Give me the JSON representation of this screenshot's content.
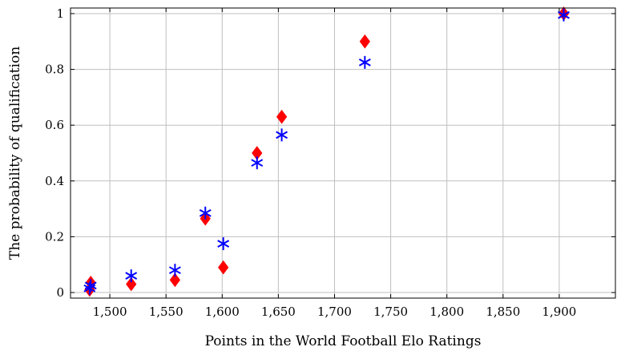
{
  "chart_data": {
    "type": "scatter",
    "title": "",
    "xlabel": "Points in the World Football Elo Ratings",
    "ylabel": "The probability of qualification",
    "xlim": [
      1465,
      1950
    ],
    "ylim": [
      -0.02,
      1.02
    ],
    "x_ticks": [
      1500,
      1550,
      1600,
      1650,
      1700,
      1750,
      1800,
      1850,
      1900
    ],
    "x_tick_labels": [
      "1,500",
      "1,550",
      "1,600",
      "1,650",
      "1,700",
      "1,750",
      "1,800",
      "1,850",
      "1,900"
    ],
    "y_ticks": [
      0,
      0.2,
      0.4,
      0.6,
      0.8,
      1
    ],
    "y_tick_labels": [
      "0",
      "0.2",
      "0.4",
      "0.6",
      "0.8",
      "1"
    ],
    "grid": true,
    "legend": "none",
    "series": [
      {
        "marker": "diamond",
        "color": "#ff0000",
        "points": [
          {
            "x": 1482,
            "y": 0.01
          },
          {
            "x": 1483,
            "y": 0.035
          },
          {
            "x": 1519,
            "y": 0.03
          },
          {
            "x": 1558,
            "y": 0.045
          },
          {
            "x": 1585,
            "y": 0.265
          },
          {
            "x": 1601,
            "y": 0.09
          },
          {
            "x": 1631,
            "y": 0.5
          },
          {
            "x": 1653,
            "y": 0.63
          },
          {
            "x": 1727,
            "y": 0.9
          },
          {
            "x": 1904,
            "y": 1.0
          }
        ]
      },
      {
        "marker": "asterisk",
        "color": "#0000ff",
        "points": [
          {
            "x": 1482,
            "y": 0.015
          },
          {
            "x": 1483,
            "y": 0.025
          },
          {
            "x": 1519,
            "y": 0.06
          },
          {
            "x": 1558,
            "y": 0.08
          },
          {
            "x": 1585,
            "y": 0.285
          },
          {
            "x": 1601,
            "y": 0.175
          },
          {
            "x": 1631,
            "y": 0.465
          },
          {
            "x": 1653,
            "y": 0.565
          },
          {
            "x": 1727,
            "y": 0.825
          },
          {
            "x": 1904,
            "y": 0.995
          }
        ]
      }
    ]
  }
}
